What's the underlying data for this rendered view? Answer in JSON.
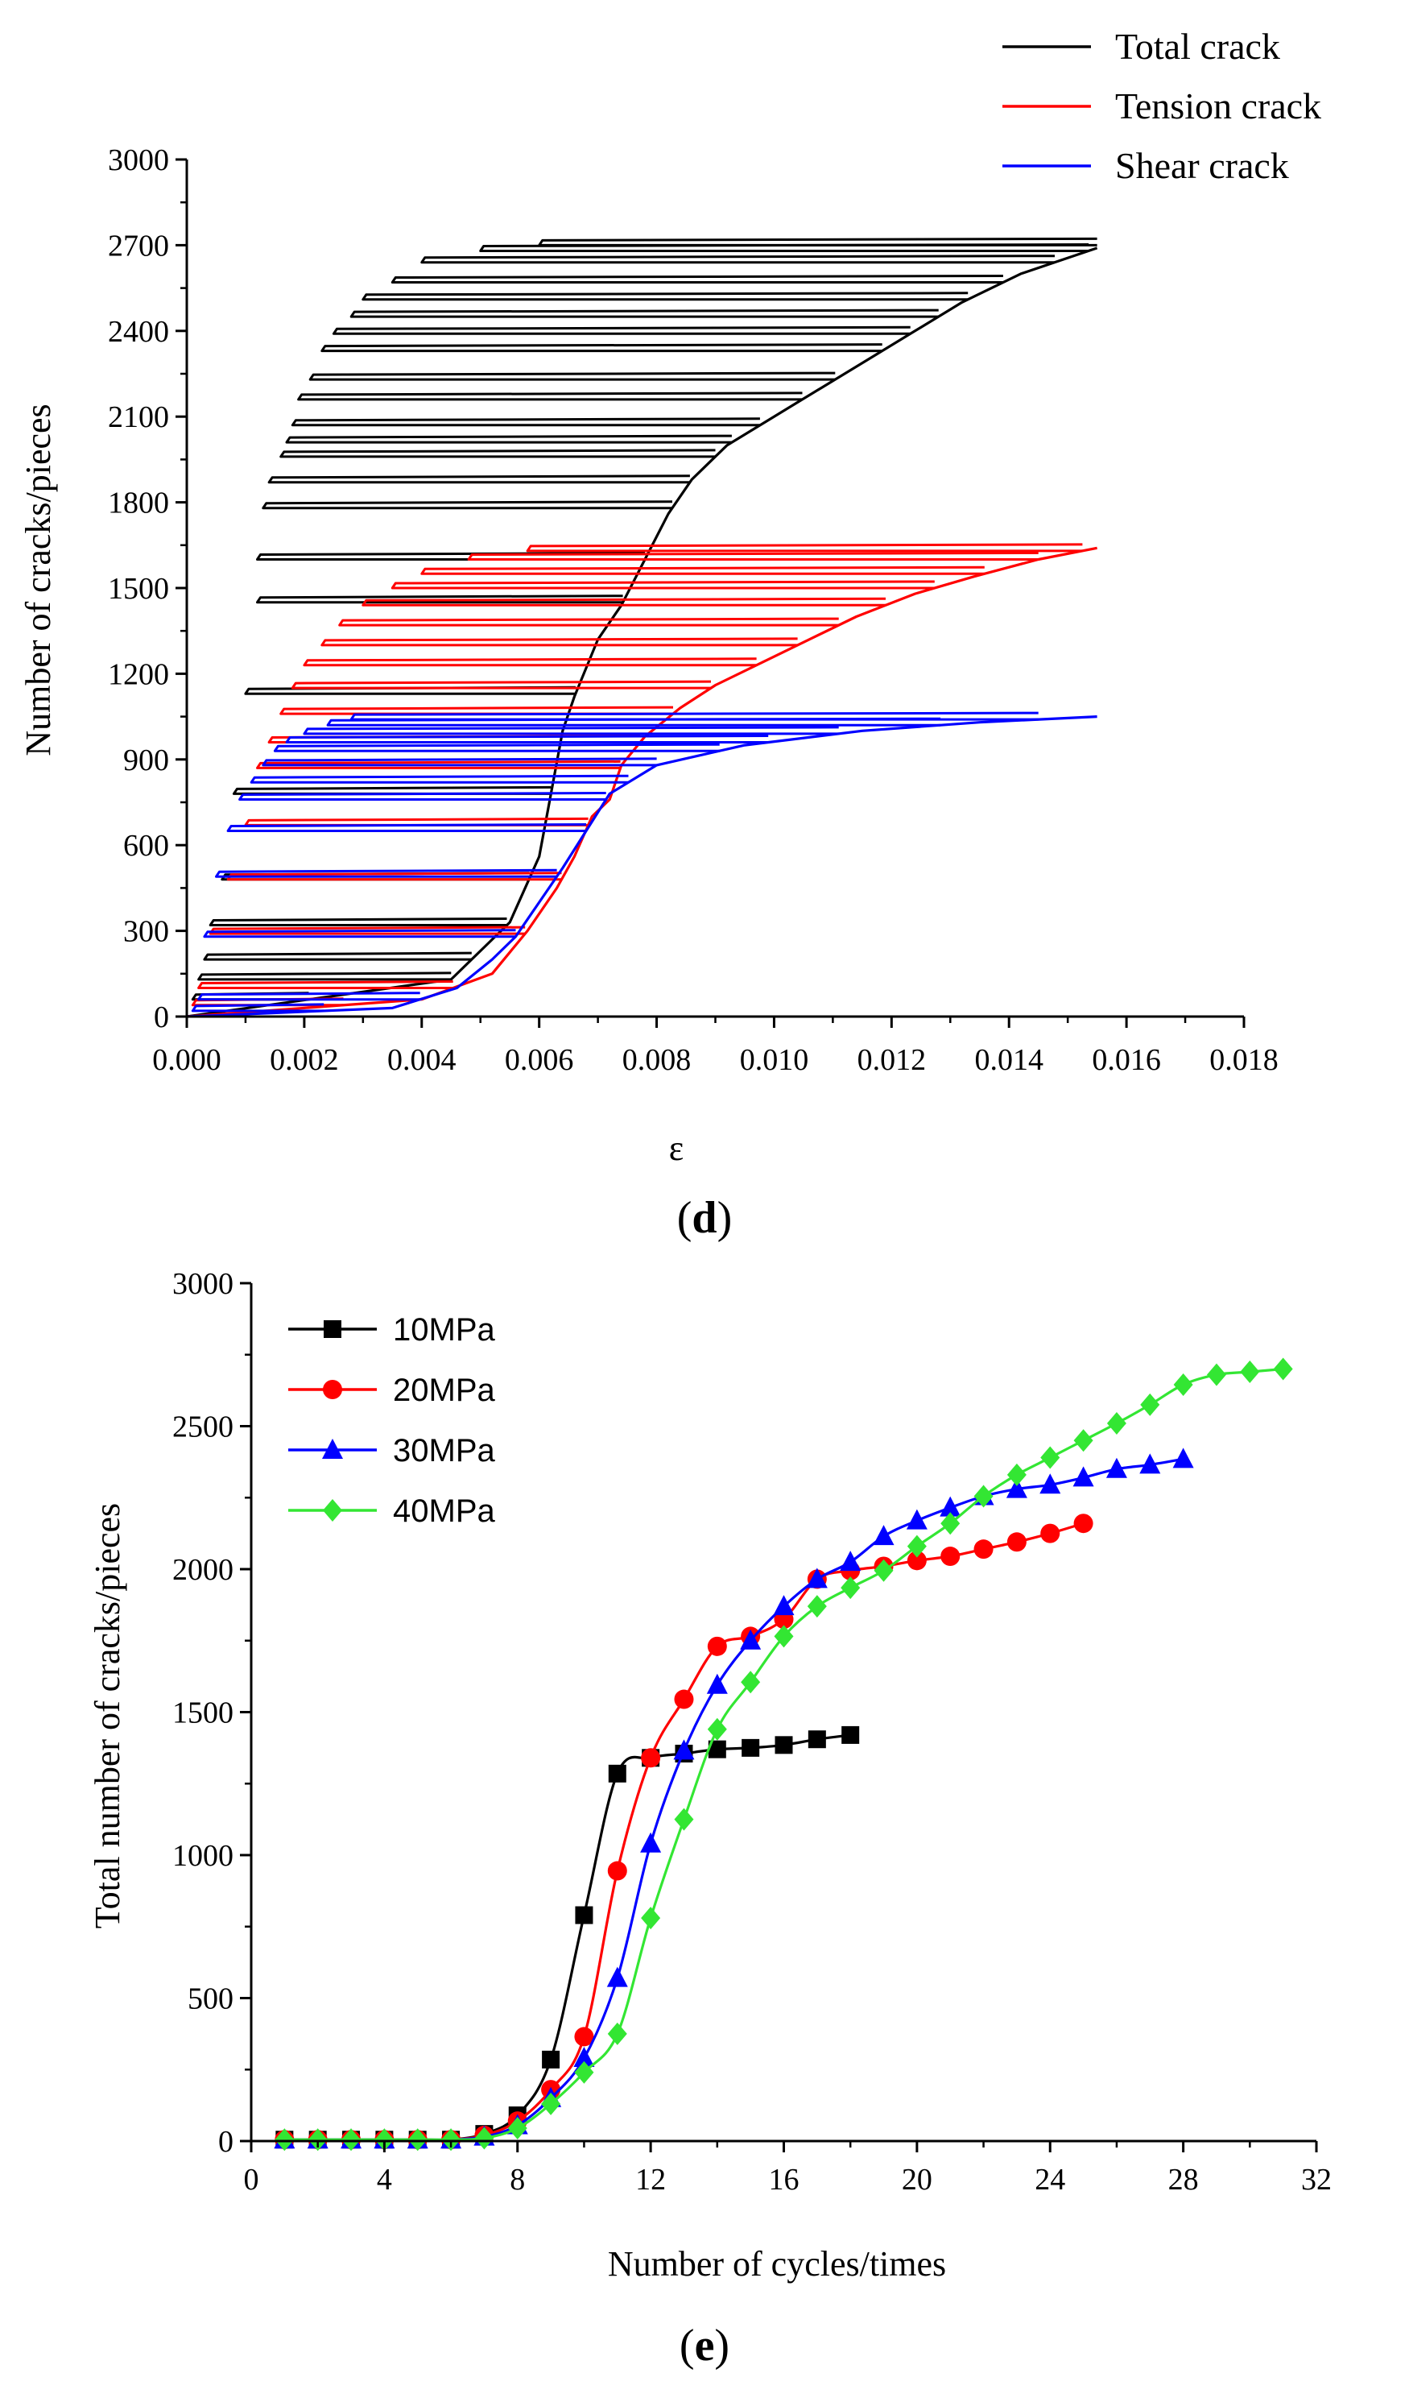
{
  "chart_data": [
    {
      "panel": "d",
      "type": "line",
      "xlabel": "ε",
      "ylabel": "Number of cracks/pieces",
      "xlim": [
        0,
        0.018
      ],
      "ylim": [
        0,
        3000
      ],
      "xticks": [
        "0.000",
        "0.002",
        "0.004",
        "0.006",
        "0.008",
        "0.010",
        "0.012",
        "0.014",
        "0.016",
        "0.018"
      ],
      "yticks": [
        "0",
        "300",
        "600",
        "900",
        "1200",
        "1500",
        "1800",
        "2100",
        "2400",
        "2700",
        "3000"
      ],
      "legend": [
        "Total crack",
        "Tension crack",
        "Shear crack"
      ],
      "note": "Cyclic loading loops; each series traced as an envelope (loading, peak) per cycle.",
      "series": [
        {
          "name": "Total crack",
          "color": "#000000",
          "envelope_x": [
            0.0,
            0.0045,
            0.0055,
            0.006,
            0.0062,
            0.0064,
            0.0066,
            0.007,
            0.0074,
            0.0078,
            0.0082,
            0.0086,
            0.0092,
            0.01,
            0.0108,
            0.0116,
            0.0124,
            0.0132,
            0.0142,
            0.0155
          ],
          "envelope_y": [
            0,
            130,
            330,
            560,
            780,
            1000,
            1120,
            1320,
            1440,
            1600,
            1760,
            1880,
            2000,
            2100,
            2200,
            2300,
            2400,
            2500,
            2600,
            2690
          ],
          "cycle_start_x": [
            0.0001,
            0.0002,
            0.0003,
            0.0004,
            0.0006,
            0.0008,
            0.001,
            0.0012,
            0.0012,
            0.0013,
            0.0014,
            0.0016,
            0.0017,
            0.0018,
            0.0019,
            0.0021,
            0.0023,
            0.0025,
            0.0028,
            0.003,
            0.0035,
            0.004,
            0.005,
            0.006
          ],
          "cycle_start_y": [
            60,
            130,
            200,
            320,
            480,
            780,
            1130,
            1450,
            1600,
            1780,
            1870,
            1960,
            2010,
            2070,
            2160,
            2230,
            2330,
            2390,
            2450,
            2510,
            2570,
            2640,
            2680,
            2700
          ]
        },
        {
          "name": "Tension crack",
          "color": "#ff0000",
          "envelope_x": [
            0.0,
            0.004,
            0.0052,
            0.0058,
            0.0063,
            0.0066,
            0.0069,
            0.0072,
            0.0074,
            0.0078,
            0.0084,
            0.009,
            0.0098,
            0.0106,
            0.0114,
            0.0124,
            0.0134,
            0.0145,
            0.0155
          ],
          "envelope_y": [
            0,
            60,
            150,
            300,
            450,
            560,
            700,
            760,
            880,
            980,
            1080,
            1160,
            1240,
            1320,
            1400,
            1480,
            1540,
            1600,
            1640
          ],
          "cycle_start_x": [
            0.0001,
            0.0002,
            0.0004,
            0.0007,
            0.001,
            0.0012,
            0.0014,
            0.0016,
            0.0018,
            0.002,
            0.0023,
            0.0026,
            0.003,
            0.0035,
            0.004,
            0.0048,
            0.0058
          ],
          "cycle_start_y": [
            40,
            100,
            290,
            480,
            670,
            870,
            960,
            1060,
            1150,
            1230,
            1300,
            1370,
            1440,
            1500,
            1550,
            1600,
            1630
          ]
        },
        {
          "name": "Shear crack",
          "color": "#0000ff",
          "envelope_x": [
            0.0,
            0.0035,
            0.0046,
            0.0052,
            0.0056,
            0.006,
            0.0064,
            0.0068,
            0.0072,
            0.008,
            0.0095,
            0.0115,
            0.0135,
            0.0155
          ],
          "envelope_y": [
            0,
            30,
            100,
            200,
            280,
            400,
            520,
            650,
            780,
            880,
            950,
            1000,
            1030,
            1050
          ],
          "cycle_start_x": [
            0.0001,
            0.0002,
            0.0003,
            0.0005,
            0.0007,
            0.0009,
            0.0011,
            0.0013,
            0.0015,
            0.0017,
            0.002,
            0.0024,
            0.0028
          ],
          "cycle_start_y": [
            20,
            60,
            280,
            490,
            650,
            760,
            820,
            880,
            930,
            960,
            990,
            1020,
            1040
          ]
        }
      ]
    },
    {
      "panel": "e",
      "type": "line",
      "xlabel": "Number of cycles/times",
      "ylabel": "Total number of cracks/pieces",
      "xlim": [
        0,
        32
      ],
      "ylim": [
        0,
        3000
      ],
      "xticks": [
        "0",
        "4",
        "8",
        "12",
        "16",
        "20",
        "24",
        "28",
        "32"
      ],
      "yticks": [
        "0",
        "500",
        "1000",
        "1500",
        "2000",
        "2500",
        "3000"
      ],
      "series": [
        {
          "name": "10MPa",
          "color": "#000000",
          "marker": "square",
          "x": [
            1,
            2,
            3,
            4,
            5,
            6,
            7,
            8,
            9,
            10,
            11,
            12,
            13,
            14,
            15,
            16,
            17,
            18
          ],
          "y": [
            5,
            5,
            5,
            5,
            5,
            5,
            25,
            90,
            285,
            790,
            1285,
            1340,
            1355,
            1370,
            1375,
            1385,
            1405,
            1420
          ]
        },
        {
          "name": "20MPa",
          "color": "#ff0000",
          "marker": "circle",
          "x": [
            1,
            2,
            3,
            4,
            5,
            6,
            7,
            8,
            9,
            10,
            11,
            12,
            13,
            14,
            15,
            16,
            17,
            18,
            19,
            20,
            21,
            22,
            23,
            24,
            25
          ],
          "y": [
            5,
            5,
            5,
            5,
            5,
            5,
            20,
            70,
            180,
            365,
            945,
            1340,
            1545,
            1730,
            1765,
            1825,
            1965,
            1995,
            2010,
            2030,
            2045,
            2070,
            2095,
            2125,
            2160
          ]
        },
        {
          "name": "30MPa",
          "color": "#0000ff",
          "marker": "triangle",
          "x": [
            1,
            2,
            3,
            4,
            5,
            6,
            7,
            8,
            9,
            10,
            11,
            12,
            13,
            14,
            15,
            16,
            17,
            18,
            19,
            20,
            21,
            22,
            23,
            24,
            25,
            26,
            27,
            28
          ],
          "y": [
            5,
            5,
            5,
            5,
            5,
            5,
            15,
            55,
            150,
            290,
            570,
            1040,
            1365,
            1595,
            1750,
            1870,
            1965,
            2025,
            2115,
            2170,
            2215,
            2255,
            2280,
            2295,
            2320,
            2350,
            2365,
            2385
          ]
        },
        {
          "name": "40MPa",
          "color": "#33e633",
          "marker": "diamond",
          "x": [
            1,
            2,
            3,
            4,
            5,
            6,
            7,
            8,
            9,
            10,
            11,
            12,
            13,
            14,
            15,
            16,
            17,
            18,
            19,
            20,
            21,
            22,
            23,
            24,
            25,
            26,
            27,
            28,
            29,
            30,
            31
          ],
          "y": [
            5,
            5,
            5,
            5,
            5,
            5,
            10,
            45,
            130,
            240,
            375,
            780,
            1125,
            1440,
            1605,
            1765,
            1870,
            1935,
            1995,
            2080,
            2160,
            2255,
            2330,
            2390,
            2450,
            2510,
            2575,
            2645,
            2680,
            2690,
            2700
          ]
        }
      ]
    }
  ],
  "panels": {
    "d_label": "d",
    "e_label": "e",
    "open": "(",
    "close": ")"
  }
}
